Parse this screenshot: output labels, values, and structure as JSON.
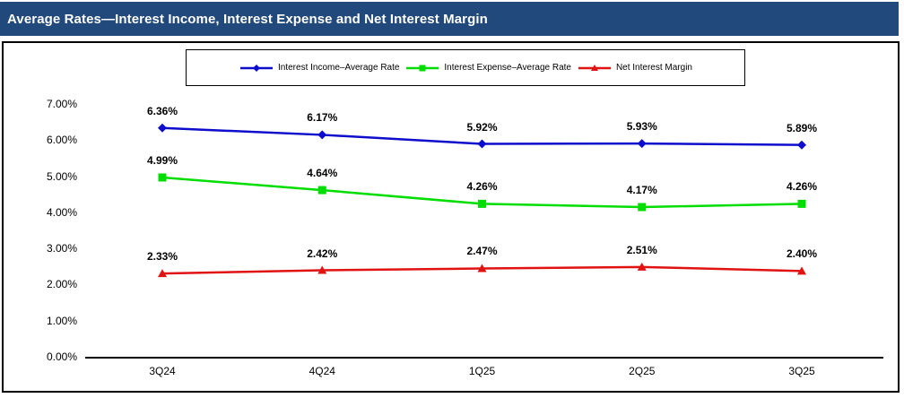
{
  "title_bar": {
    "title": "Average Rates—Interest Income, Interest Expense and Net Interest Margin"
  },
  "colors": {
    "title_bar_bg": "#21497B",
    "title_text": "#FFFFFF",
    "axis_line": "#000000",
    "border": "#000000"
  },
  "chart_data": {
    "type": "line",
    "title": "Average Rates—Interest Income, Interest Expense and Net Interest Margin",
    "categories": [
      "3Q24",
      "4Q24",
      "1Q25",
      "2Q25",
      "3Q25"
    ],
    "series": [
      {
        "name": "Interest Income–Average Rate",
        "values": [
          6.36,
          6.17,
          5.92,
          5.93,
          5.89
        ],
        "labels": [
          "6.36%",
          "6.17%",
          "5.92%",
          "5.93%",
          "5.89%"
        ],
        "color": "#0D0DCB",
        "marker": "diamond"
      },
      {
        "name": "Interest Expense–Average Rate",
        "values": [
          4.99,
          4.64,
          4.26,
          4.17,
          4.26
        ],
        "labels": [
          "4.99%",
          "4.64%",
          "4.26%",
          "4.17%",
          "4.26%"
        ],
        "color": "#00DD00",
        "marker": "square"
      },
      {
        "name": "Net Interest Margin",
        "values": [
          2.33,
          2.42,
          2.47,
          2.51,
          2.4
        ],
        "labels": [
          "2.33%",
          "2.42%",
          "2.47%",
          "2.51%",
          "2.40%"
        ],
        "color": "#E01212",
        "marker": "triangle"
      }
    ],
    "y_axis": {
      "min": 0,
      "max": 7,
      "tick_labels": [
        "0.00%",
        "1.00%",
        "2.00%",
        "3.00%",
        "4.00%",
        "5.00%",
        "6.00%",
        "7.00%"
      ]
    },
    "legend_position": "top",
    "grid": false
  }
}
